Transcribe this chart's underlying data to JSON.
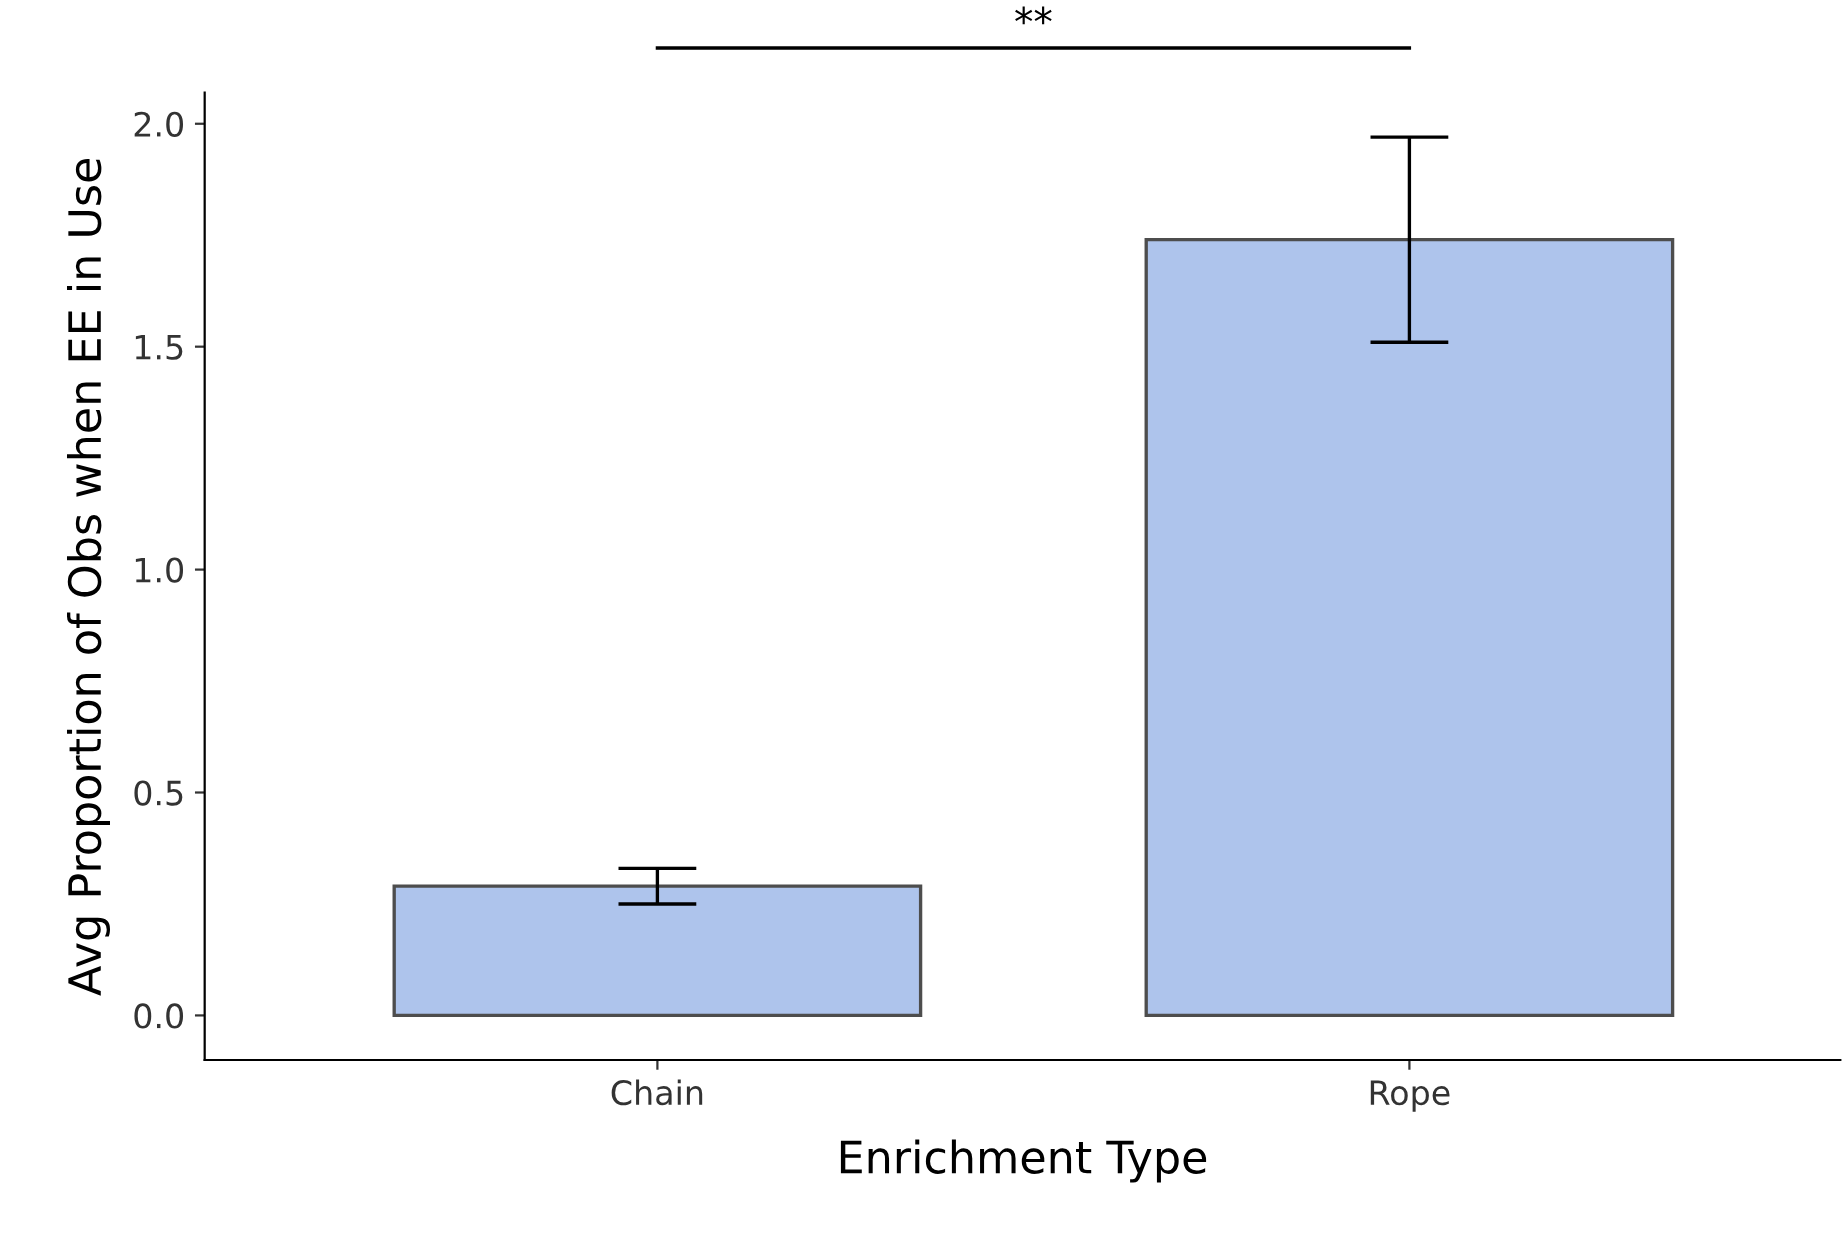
{
  "chart_data": {
    "type": "bar",
    "xlabel": "Enrichment Type",
    "ylabel": "Avg Proportion of Obs when EE in Use",
    "categories": [
      "Chain",
      "Rope"
    ],
    "values": [
      0.29,
      1.74
    ],
    "errors": [
      [
        0.25,
        0.33
      ],
      [
        1.51,
        1.97
      ]
    ],
    "color": "#aec4ec",
    "ylim": [
      -0.1,
      2.07
    ],
    "yticks": [
      {
        "value": 0,
        "label": "0.0"
      },
      {
        "value": 0.5,
        "label": "0.5"
      },
      {
        "value": 1,
        "label": "1.0"
      },
      {
        "value": 1.5,
        "label": "1.5"
      },
      {
        "value": 2,
        "label": "2.0"
      }
    ],
    "grid": false,
    "annotations": [
      "**"
    ]
  }
}
